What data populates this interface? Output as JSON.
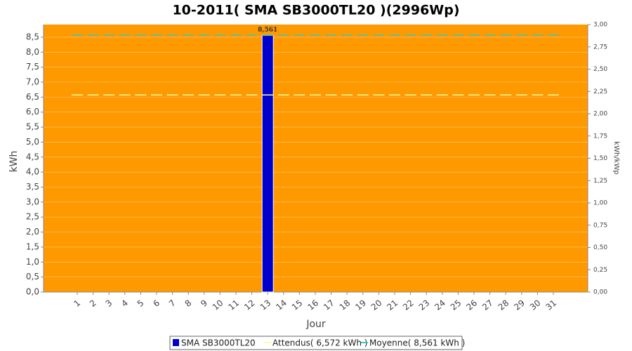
{
  "chart_data": {
    "type": "bar",
    "title": "10-2011( SMA SB3000TL20 )(2996Wp)",
    "x_label": "Jour",
    "y_label": "kWh",
    "y2_label": "kWh/kWp",
    "categories": [
      "1",
      "2",
      "3",
      "4",
      "5",
      "6",
      "7",
      "8",
      "9",
      "10",
      "11",
      "12",
      "13",
      "14",
      "15",
      "16",
      "17",
      "18",
      "19",
      "20",
      "21",
      "22",
      "23",
      "24",
      "25",
      "26",
      "27",
      "28",
      "29",
      "30",
      "31"
    ],
    "series": [
      {
        "name": "SMA SB3000TL20",
        "type": "bar",
        "color": "#0000cc",
        "values": [
          null,
          null,
          null,
          null,
          null,
          null,
          null,
          null,
          null,
          null,
          null,
          null,
          8.561,
          null,
          null,
          null,
          null,
          null,
          null,
          null,
          null,
          null,
          null,
          null,
          null,
          null,
          null,
          null,
          null,
          null,
          null
        ],
        "value_labels": [
          null,
          null,
          null,
          null,
          null,
          null,
          null,
          null,
          null,
          null,
          null,
          null,
          "8,561",
          null,
          null,
          null,
          null,
          null,
          null,
          null,
          null,
          null,
          null,
          null,
          null,
          null,
          null,
          null,
          null,
          null,
          null
        ]
      },
      {
        "name": "Attendus( 6,572 kWh )",
        "type": "line",
        "color": "#ffff99",
        "values": [
          6.572,
          6.572,
          6.572,
          6.572,
          6.572,
          6.572,
          6.572,
          6.572,
          6.572,
          6.572,
          6.572,
          6.572,
          6.572,
          6.572,
          6.572,
          6.572,
          6.572,
          6.572,
          6.572,
          6.572,
          6.572,
          6.572,
          6.572,
          6.572,
          6.572,
          6.572,
          6.572,
          6.572,
          6.572,
          6.572,
          6.572
        ]
      },
      {
        "name": "Moyenne( 8,561 kWh )",
        "type": "line",
        "color": "#33cccc",
        "values": [
          8.561,
          8.561,
          8.561,
          8.561,
          8.561,
          8.561,
          8.561,
          8.561,
          8.561,
          8.561,
          8.561,
          8.561,
          8.561,
          8.561,
          8.561,
          8.561,
          8.561,
          8.561,
          8.561,
          8.561,
          8.561,
          8.561,
          8.561,
          8.561,
          8.561,
          8.561,
          8.561,
          8.561,
          8.561,
          8.561,
          8.561
        ]
      }
    ],
    "ylim": [
      0,
      8.92
    ],
    "yticks": [
      {
        "value": 0,
        "label": "0,0"
      },
      {
        "value": 0.5,
        "label": "0,5"
      },
      {
        "value": 1,
        "label": "1,0"
      },
      {
        "value": 1.5,
        "label": "1,5"
      },
      {
        "value": 2,
        "label": "2,0"
      },
      {
        "value": 2.5,
        "label": "2,5"
      },
      {
        "value": 3,
        "label": "3,0"
      },
      {
        "value": 3.5,
        "label": "3,5"
      },
      {
        "value": 4,
        "label": "4,0"
      },
      {
        "value": 4.5,
        "label": "4,5"
      },
      {
        "value": 5,
        "label": "5,0"
      },
      {
        "value": 5.5,
        "label": "5,5"
      },
      {
        "value": 6,
        "label": "6,0"
      },
      {
        "value": 6.5,
        "label": "6,5"
      },
      {
        "value": 7,
        "label": "7,0"
      },
      {
        "value": 7.5,
        "label": "7,5"
      },
      {
        "value": 8,
        "label": "8,0"
      },
      {
        "value": 8.5,
        "label": "8,5"
      }
    ],
    "y2lim": [
      0,
      3
    ],
    "y2ticks": [
      {
        "value": 0,
        "label": "0,00"
      },
      {
        "value": 0.25,
        "label": "0,25"
      },
      {
        "value": 0.5,
        "label": "0,50"
      },
      {
        "value": 0.75,
        "label": "0,75"
      },
      {
        "value": 1,
        "label": "1,00"
      },
      {
        "value": 1.25,
        "label": "1,25"
      },
      {
        "value": 1.5,
        "label": "1,50"
      },
      {
        "value": 1.75,
        "label": "1,75"
      },
      {
        "value": 2,
        "label": "2,00"
      },
      {
        "value": 2.25,
        "label": "2,25"
      },
      {
        "value": 2.5,
        "label": "2,50"
      },
      {
        "value": 2.75,
        "label": "2,75"
      },
      {
        "value": 3,
        "label": "3,00"
      }
    ],
    "grid": true,
    "background": "#ff9900"
  }
}
